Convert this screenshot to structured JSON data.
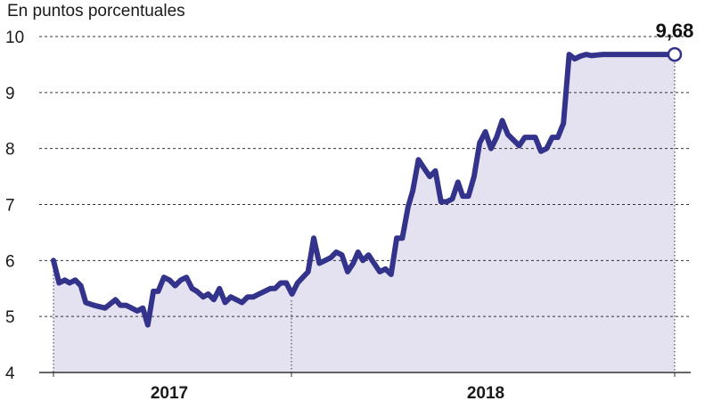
{
  "chart_data": {
    "type": "area",
    "ylabel": "En puntos porcentuales",
    "y_ticks": [
      "10",
      "9",
      "8",
      "7",
      "6",
      "5",
      "4"
    ],
    "ylim": [
      4,
      10
    ],
    "x_ticks": [
      "2017",
      "2018"
    ],
    "grid": "horizontal dashed",
    "annotation": {
      "label": "9,68",
      "value": 9.68
    },
    "colors": {
      "line": "#33338c",
      "fill": "#e4e1f1",
      "grid": "#333333",
      "marker_fill": "#ffffff"
    },
    "series": [
      {
        "x": [
          "2016-09-01",
          "2016-09-08",
          "2016-09-15",
          "2016-09-21",
          "2016-09-28",
          "2016-10-05",
          "2016-10-11",
          "2016-10-21",
          "2016-11-04",
          "2016-11-17",
          "2016-11-23",
          "2016-11-30",
          "2016-12-07",
          "2016-12-14",
          "2016-12-21",
          "2016-12-27",
          "2017-01-03",
          "2017-01-09",
          "2017-01-16",
          "2017-01-23",
          "2017-01-30",
          "2017-02-06",
          "2017-02-13",
          "2017-02-20",
          "2017-02-26",
          "2017-03-06",
          "2017-03-12",
          "2017-03-19",
          "2017-03-26",
          "2017-04-02",
          "2017-04-09",
          "2017-04-16",
          "2017-04-23",
          "2017-04-30",
          "2017-05-07",
          "2017-05-14",
          "2017-05-21",
          "2017-05-28",
          "2017-06-03",
          "2017-06-10",
          "2017-06-17",
          "2017-06-24",
          "2017-07-01",
          "2017-07-14",
          "2017-07-21",
          "2017-07-28",
          "2017-08-04",
          "2017-08-11",
          "2017-08-18",
          "2017-08-25",
          "2017-09-01",
          "2017-09-08",
          "2017-09-14",
          "2017-09-20",
          "2017-09-27",
          "2017-10-04",
          "2017-10-11",
          "2017-10-18",
          "2017-10-25",
          "2017-11-01",
          "2017-11-08",
          "2017-11-15",
          "2017-11-21",
          "2017-11-28",
          "2017-12-05",
          "2017-12-12",
          "2017-12-19",
          "2017-12-26",
          "2018-01-02",
          "2018-01-09",
          "2018-01-16",
          "2018-01-22",
          "2018-01-29",
          "2018-02-05",
          "2018-02-12",
          "2018-02-19",
          "2018-02-26",
          "2018-03-05",
          "2018-03-12",
          "2018-03-19",
          "2018-03-26",
          "2018-04-02",
          "2018-04-09",
          "2018-04-15",
          "2018-04-22",
          "2018-04-29",
          "2018-05-06",
          "2018-05-13",
          "2018-05-20",
          "2018-05-27",
          "2018-06-03",
          "2018-06-10",
          "2018-06-17",
          "2018-06-24",
          "2018-07-01",
          "2018-07-08",
          "2018-07-15",
          "2018-07-22",
          "2018-07-29",
          "2018-08-05",
          "2018-08-11",
          "2018-08-18",
          "2018-08-25",
          "2018-09-01",
          "2018-09-08",
          "2018-09-15",
          "2018-09-21",
          "2018-09-28",
          "2018-10-05",
          "2018-10-12"
        ],
        "values": [
          6.0,
          5.6,
          5.65,
          5.6,
          5.65,
          5.55,
          5.25,
          5.2,
          5.15,
          5.3,
          5.2,
          5.2,
          5.15,
          5.1,
          5.15,
          4.85,
          5.45,
          5.45,
          5.7,
          5.65,
          5.55,
          5.65,
          5.7,
          5.5,
          5.45,
          5.35,
          5.4,
          5.3,
          5.5,
          5.25,
          5.35,
          5.3,
          5.25,
          5.35,
          5.35,
          5.4,
          5.45,
          5.5,
          5.5,
          5.6,
          5.6,
          5.4,
          5.6,
          5.8,
          6.4,
          5.95,
          6.0,
          6.05,
          6.15,
          6.1,
          5.8,
          5.95,
          6.15,
          6.0,
          6.1,
          5.95,
          5.8,
          5.85,
          5.75,
          6.4,
          6.4,
          6.95,
          7.25,
          7.8,
          7.65,
          7.5,
          7.6,
          7.05,
          7.05,
          7.1,
          7.4,
          7.15,
          7.15,
          7.5,
          8.1,
          8.3,
          8.0,
          8.2,
          8.5,
          8.25,
          8.15,
          8.05,
          8.2,
          8.2,
          8.2,
          7.95,
          8.0,
          8.2,
          8.2,
          8.45,
          9.68,
          9.6,
          9.65,
          9.68,
          9.66,
          9.67,
          9.68,
          9.68,
          9.68,
          9.68,
          9.68,
          9.68,
          9.68,
          9.68,
          9.68,
          9.68,
          9.68,
          9.68,
          9.68,
          9.68
        ]
      }
    ]
  }
}
